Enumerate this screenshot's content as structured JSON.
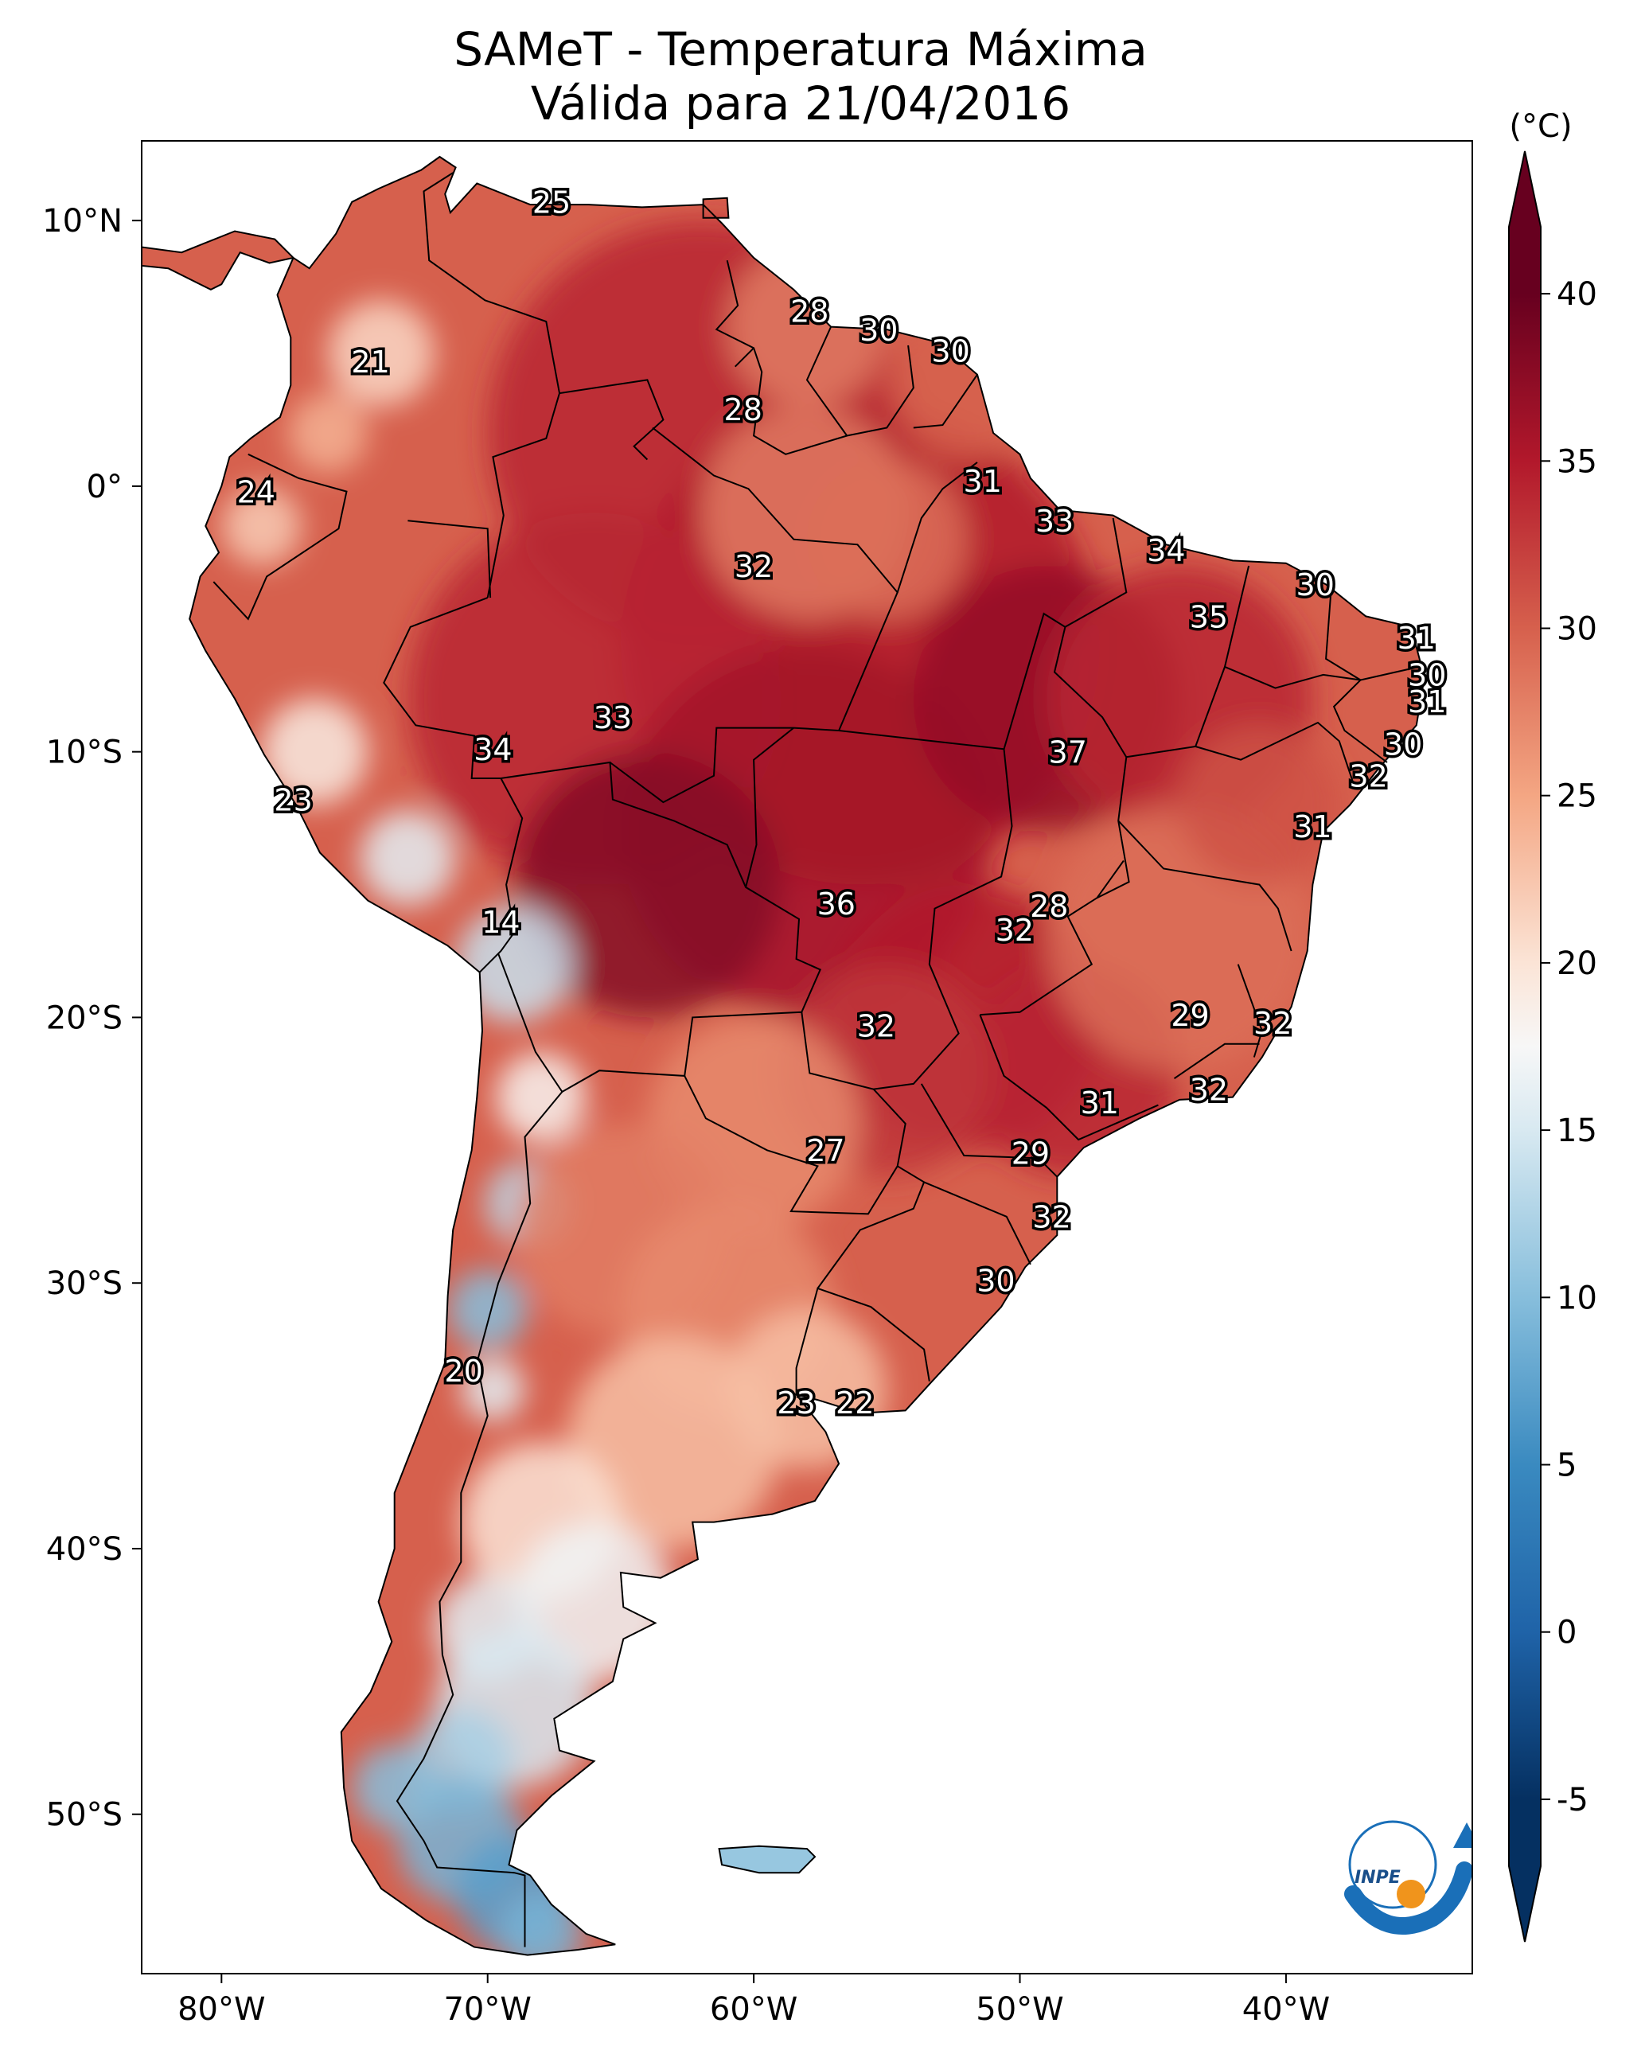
{
  "title": {
    "line1": "SAMeT - Temperatura Máxima",
    "line2": "Válida para 21/04/2016"
  },
  "map": {
    "lon_range": [
      -83,
      -33
    ],
    "lat_range": [
      -56,
      13
    ],
    "lat_ticks": [
      {
        "value": 10,
        "label": "10°N"
      },
      {
        "value": 0,
        "label": "0°"
      },
      {
        "value": -10,
        "label": "10°S"
      },
      {
        "value": -20,
        "label": "20°S"
      },
      {
        "value": -30,
        "label": "30°S"
      },
      {
        "value": -40,
        "label": "40°S"
      },
      {
        "value": -50,
        "label": "50°S"
      }
    ],
    "lon_ticks": [
      {
        "value": -80,
        "label": "80°W"
      },
      {
        "value": -70,
        "label": "70°W"
      },
      {
        "value": -60,
        "label": "60°W"
      },
      {
        "value": -50,
        "label": "50°W"
      },
      {
        "value": -40,
        "label": "40°W"
      }
    ],
    "temperature_labels": [
      {
        "lon": -67.6,
        "lat": 10.6,
        "value": "25"
      },
      {
        "lon": -74.4,
        "lat": 4.6,
        "value": "21"
      },
      {
        "lon": -78.7,
        "lat": -0.3,
        "value": "24"
      },
      {
        "lon": -57.9,
        "lat": 6.5,
        "value": "28"
      },
      {
        "lon": -55.3,
        "lat": 5.8,
        "value": "30"
      },
      {
        "lon": -52.6,
        "lat": 5.0,
        "value": "30"
      },
      {
        "lon": -60.4,
        "lat": 2.8,
        "value": "28"
      },
      {
        "lon": -51.4,
        "lat": 0.1,
        "value": "31"
      },
      {
        "lon": -48.7,
        "lat": -1.4,
        "value": "33"
      },
      {
        "lon": -60.0,
        "lat": -3.1,
        "value": "32"
      },
      {
        "lon": -44.5,
        "lat": -2.5,
        "value": "34"
      },
      {
        "lon": -42.9,
        "lat": -5.0,
        "value": "35"
      },
      {
        "lon": -38.9,
        "lat": -3.8,
        "value": "30"
      },
      {
        "lon": -35.1,
        "lat": -5.8,
        "value": "31"
      },
      {
        "lon": -34.7,
        "lat": -7.2,
        "value": "30"
      },
      {
        "lon": -34.7,
        "lat": -8.2,
        "value": "31"
      },
      {
        "lon": -35.6,
        "lat": -9.8,
        "value": "30"
      },
      {
        "lon": -36.9,
        "lat": -11.0,
        "value": "32"
      },
      {
        "lon": -39.0,
        "lat": -12.9,
        "value": "31"
      },
      {
        "lon": -65.3,
        "lat": -8.8,
        "value": "33"
      },
      {
        "lon": -69.8,
        "lat": -10.0,
        "value": "34"
      },
      {
        "lon": -48.2,
        "lat": -10.1,
        "value": "37"
      },
      {
        "lon": -77.3,
        "lat": -11.9,
        "value": "23"
      },
      {
        "lon": -69.5,
        "lat": -16.5,
        "value": "14"
      },
      {
        "lon": -56.9,
        "lat": -15.8,
        "value": "36"
      },
      {
        "lon": -48.9,
        "lat": -15.9,
        "value": "28"
      },
      {
        "lon": -50.2,
        "lat": -16.8,
        "value": "32"
      },
      {
        "lon": -43.6,
        "lat": -20.0,
        "value": "29"
      },
      {
        "lon": -40.5,
        "lat": -20.3,
        "value": "32"
      },
      {
        "lon": -55.4,
        "lat": -20.4,
        "value": "32"
      },
      {
        "lon": -47.0,
        "lat": -23.3,
        "value": "31"
      },
      {
        "lon": -42.9,
        "lat": -22.8,
        "value": "32"
      },
      {
        "lon": -57.3,
        "lat": -25.1,
        "value": "27"
      },
      {
        "lon": -49.6,
        "lat": -25.2,
        "value": "29"
      },
      {
        "lon": -48.8,
        "lat": -27.6,
        "value": "32"
      },
      {
        "lon": -50.9,
        "lat": -30.0,
        "value": "30"
      },
      {
        "lon": -70.9,
        "lat": -33.4,
        "value": "20"
      },
      {
        "lon": -58.4,
        "lat": -34.6,
        "value": "23"
      },
      {
        "lon": -56.2,
        "lat": -34.6,
        "value": "22"
      }
    ]
  },
  "colorbar": {
    "unit": "(°C)",
    "min": -7,
    "max": 42,
    "ticks": [
      -5,
      0,
      5,
      10,
      15,
      20,
      25,
      30,
      35,
      40
    ],
    "stops": [
      {
        "t": -5,
        "color": "#053061"
      },
      {
        "t": 0,
        "color": "#1f63a8"
      },
      {
        "t": 5,
        "color": "#3a8ac0"
      },
      {
        "t": 10,
        "color": "#87bedc"
      },
      {
        "t": 15,
        "color": "#d8e9f1"
      },
      {
        "t": 17.5,
        "color": "#f7f7f7"
      },
      {
        "t": 20,
        "color": "#fbe4d6"
      },
      {
        "t": 25,
        "color": "#f4a683"
      },
      {
        "t": 30,
        "color": "#d6604d"
      },
      {
        "t": 35,
        "color": "#b2182b"
      },
      {
        "t": 40,
        "color": "#67001f"
      }
    ]
  },
  "logo": {
    "text": "INPE"
  }
}
